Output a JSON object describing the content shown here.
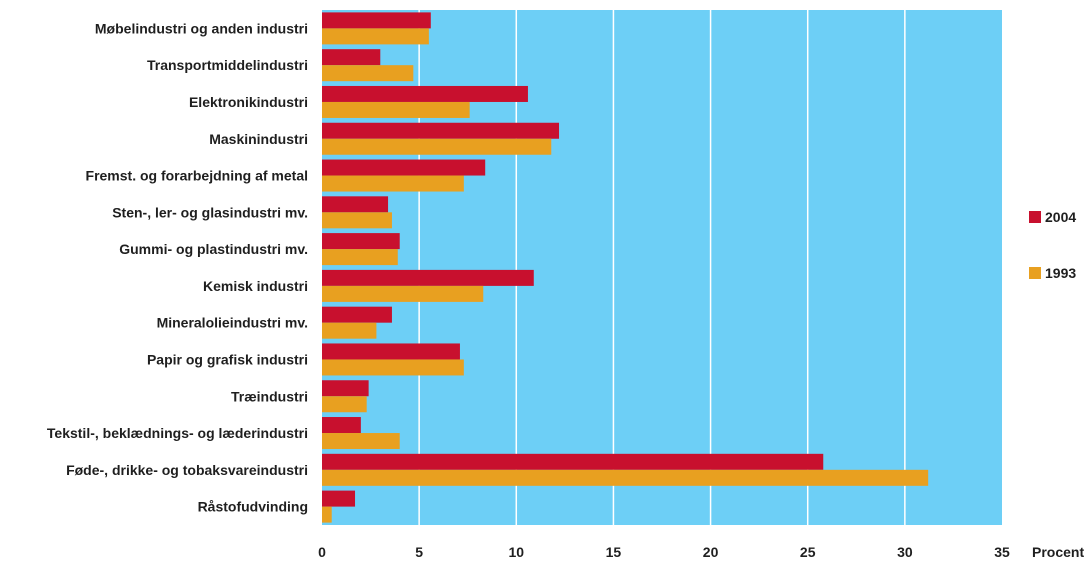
{
  "chart_data": {
    "type": "bar",
    "orientation": "horizontal",
    "categories": [
      "Møbelindustri og anden industri",
      "Transportmiddelindustri",
      "Elektronikindustri",
      "Maskinindustri",
      "Fremst. og forarbejdning af metal",
      "Sten-, ler- og glasindustri mv.",
      "Gummi- og plastindustri mv.",
      "Kemisk industri",
      "Mineralolieindustri mv.",
      "Papir og grafisk industri",
      "Træindustri",
      "Tekstil-, beklædnings- og læderindustri",
      "Føde-, drikke- og tobaksvareindustri",
      "Råstofudvinding"
    ],
    "series": [
      {
        "name": "2004",
        "color": "#c8102e",
        "values": [
          5.6,
          3.0,
          10.6,
          12.2,
          8.4,
          3.4,
          4.0,
          10.9,
          3.6,
          7.1,
          2.4,
          2.0,
          25.8,
          1.7
        ]
      },
      {
        "name": "1993",
        "color": "#e8a020",
        "values": [
          5.5,
          4.7,
          7.6,
          11.8,
          7.3,
          3.6,
          3.9,
          8.3,
          2.8,
          7.3,
          2.3,
          4.0,
          31.2,
          0.5
        ]
      }
    ],
    "xlim": [
      0,
      35
    ],
    "xticks": [
      "0",
      "5",
      "10",
      "15",
      "20",
      "25",
      "30",
      "35"
    ],
    "xlabel": "Procent",
    "ylabel": "",
    "title": "",
    "grid": true,
    "legend_position": "right",
    "background_color": "#6dcff6",
    "grid_color": "#ffffff"
  }
}
